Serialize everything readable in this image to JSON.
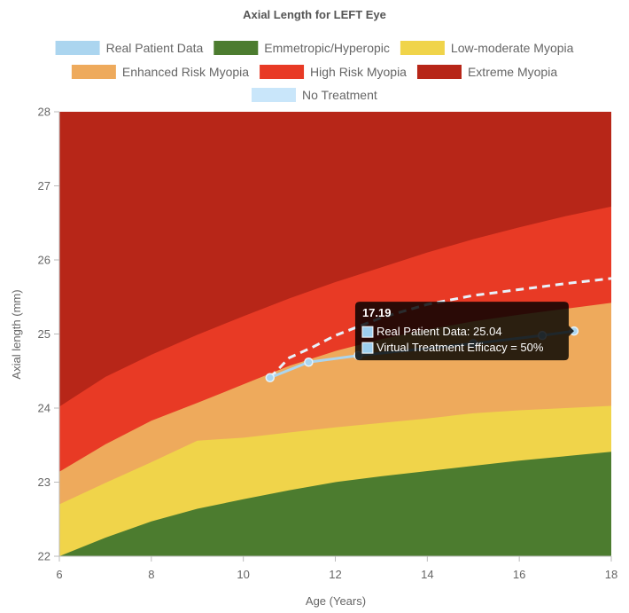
{
  "chart_data": {
    "type": "area",
    "title": "Axial Length for LEFT Eye",
    "xlabel": "Age (Years)",
    "ylabel": "Axial length (mm)",
    "xlim": [
      6,
      18
    ],
    "ylim": [
      22,
      28
    ],
    "x_ticks": [
      "6",
      "8",
      "10",
      "12",
      "14",
      "16",
      "18"
    ],
    "y_ticks": [
      "22",
      "23",
      "24",
      "25",
      "26",
      "27",
      "28"
    ],
    "grid": false,
    "legend_position": "top",
    "band_x": [
      6,
      7,
      8,
      9,
      10,
      11,
      12,
      13,
      14,
      15,
      16,
      17,
      18
    ],
    "bands": [
      {
        "name": "Emmetropic/Hyperopic",
        "color": "#4c7c2f",
        "upper": [
          22.0,
          22.25,
          22.47,
          22.64,
          22.77,
          22.89,
          23.0,
          23.08,
          23.15,
          23.22,
          23.29,
          23.35,
          23.41
        ]
      },
      {
        "name": "Low-moderate Myopia",
        "color": "#f0d44a",
        "upper": [
          22.7,
          22.99,
          23.27,
          23.56,
          23.6,
          23.67,
          23.74,
          23.8,
          23.86,
          23.93,
          23.97,
          24.0,
          24.03
        ]
      },
      {
        "name": "Enhanced Risk Myopia",
        "color": "#eeaa5c",
        "upper": [
          23.14,
          23.51,
          23.83,
          24.07,
          24.32,
          24.57,
          24.77,
          24.93,
          25.06,
          25.17,
          25.26,
          25.34,
          25.42
        ]
      },
      {
        "name": "High Risk Myopia",
        "color": "#e83a25",
        "upper": [
          24.02,
          24.42,
          24.72,
          24.99,
          25.24,
          25.48,
          25.7,
          25.9,
          26.1,
          26.28,
          26.44,
          26.59,
          26.72
        ]
      },
      {
        "name": "Extreme Myopia",
        "color": "#b72618",
        "upper": [
          28,
          28,
          28,
          28,
          28,
          28,
          28,
          28,
          28,
          28,
          28,
          28,
          28
        ]
      }
    ],
    "series": [
      {
        "name": "Real Patient Data",
        "color": "#abd5ef",
        "x": [
          10.58,
          11.42,
          12.5,
          15.0,
          16.5,
          17.19
        ],
        "y": [
          24.41,
          24.62,
          24.71,
          24.87,
          24.98,
          25.04
        ]
      },
      {
        "name": "No Treatment",
        "color": "#c9e6fa",
        "style": "dashed",
        "x": [
          10.58,
          11.0,
          11.5,
          12.0,
          13.0,
          14.0,
          15.0,
          16.0,
          17.0,
          18.0
        ],
        "y": [
          24.41,
          24.68,
          24.82,
          24.98,
          25.22,
          25.4,
          25.52,
          25.6,
          25.68,
          25.75
        ]
      }
    ],
    "legend": [
      "Real Patient Data",
      "Emmetropic/Hyperopic",
      "Low-moderate Myopia",
      "Enhanced Risk Myopia",
      "High Risk Myopia",
      "Extreme Myopia",
      "No Treatment"
    ],
    "legend_colors": [
      "#abd5ef",
      "#4c7c2f",
      "#f0d44a",
      "#eeaa5c",
      "#e83a25",
      "#b72618",
      "#c9e6fa"
    ],
    "tooltip": {
      "title": "17.19",
      "lines": [
        "Real Patient Data: 25.04",
        "Virtual Treatment Efficacy = 50%"
      ],
      "swatch_color": "#9ecfee"
    }
  }
}
